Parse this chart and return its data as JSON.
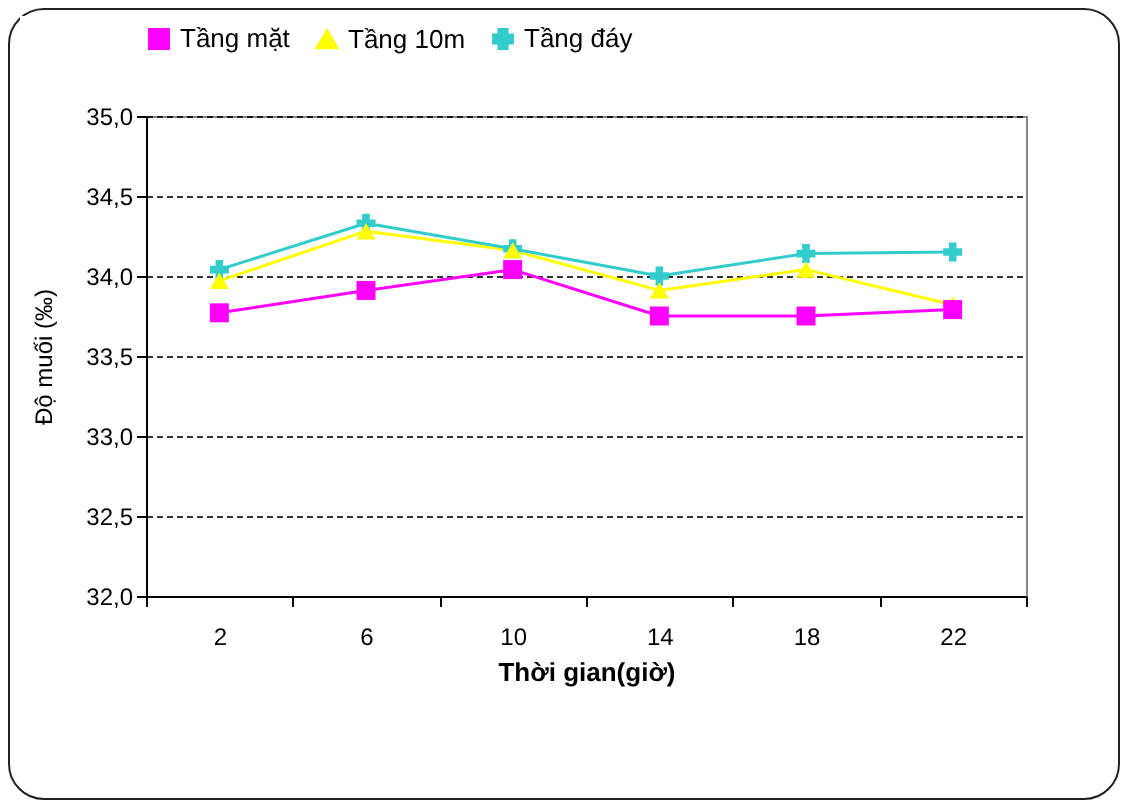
{
  "chart_data": {
    "type": "line",
    "xlabel": "Thời gian(giờ)",
    "ylabel": "Độ muối (‰)",
    "categories": [
      "2",
      "6",
      "10",
      "14",
      "18",
      "22"
    ],
    "series": [
      {
        "name": "Tầng mặt",
        "color": "#ff00ff",
        "marker": "square",
        "values": [
          33.77,
          33.91,
          34.04,
          33.75,
          33.75,
          33.79
        ]
      },
      {
        "name": "Tầng 10m",
        "color": "#ffff00",
        "marker": "triangle",
        "values": [
          33.97,
          34.28,
          34.16,
          33.91,
          34.04,
          33.82
        ]
      },
      {
        "name": "Tầng đáy",
        "color": "#33cccc",
        "marker": "cross",
        "values": [
          34.04,
          34.33,
          34.17,
          34.0,
          34.14,
          34.15
        ]
      }
    ],
    "ylim": [
      32,
      35
    ],
    "yticks": [
      {
        "value": 32,
        "label": "32,0"
      },
      {
        "value": 32.5,
        "label": "32,5"
      },
      {
        "value": 33,
        "label": "33,0"
      },
      {
        "value": 33.5,
        "label": "33,5"
      },
      {
        "value": 34,
        "label": "34,0"
      },
      {
        "value": 34.5,
        "label": "34,5"
      },
      {
        "value": 35,
        "label": "35,0"
      }
    ],
    "grid": "y",
    "legend": "top"
  }
}
